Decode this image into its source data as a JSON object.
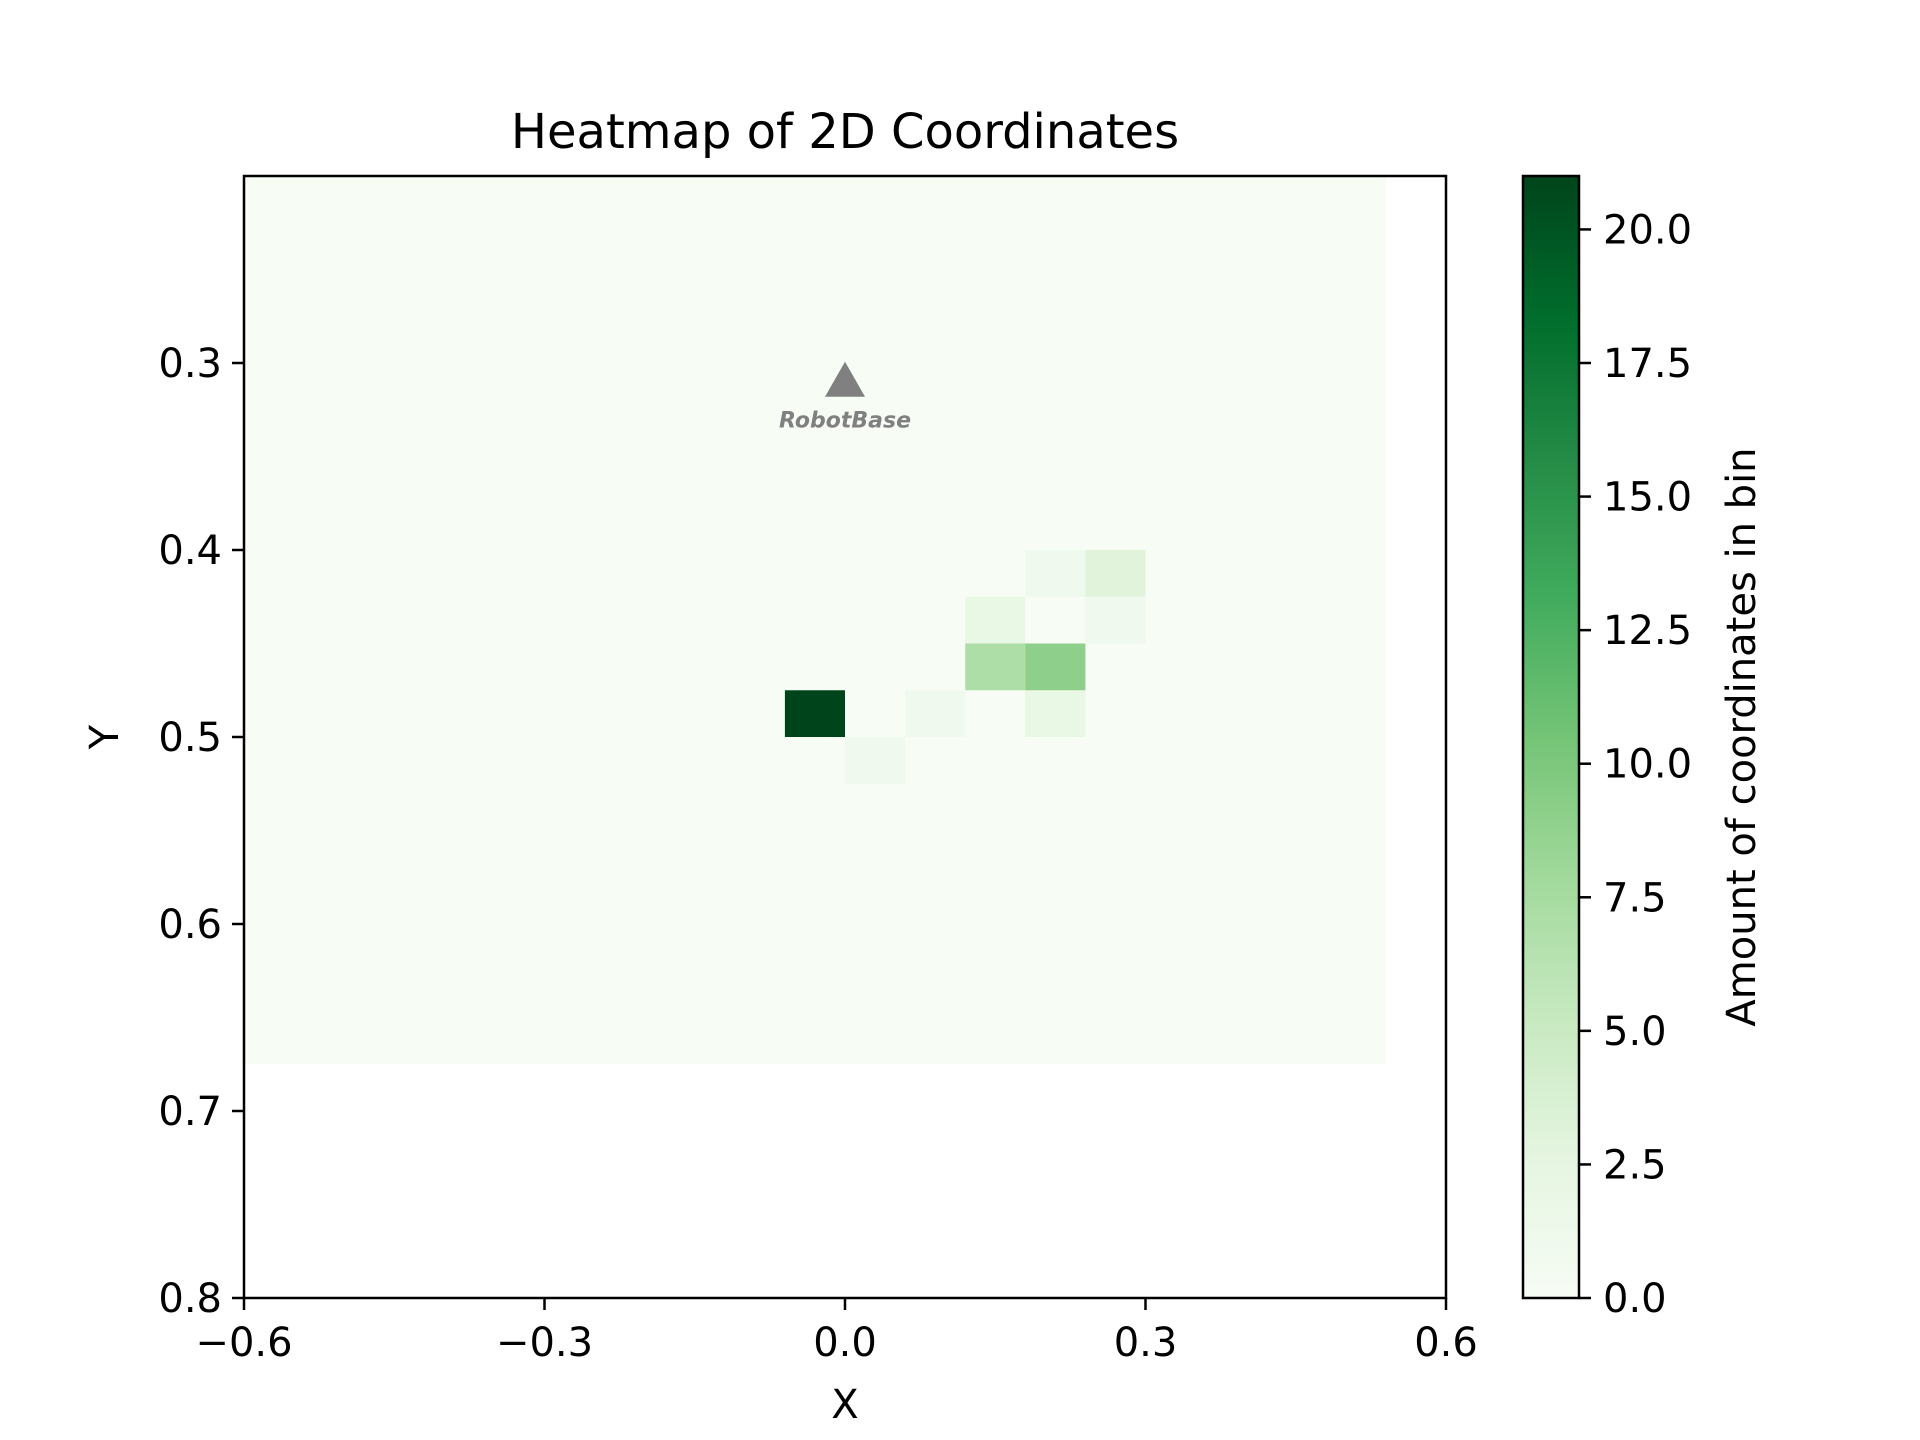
{
  "chart_data": {
    "type": "heatmap",
    "title": "Heatmap of 2D Coordinates",
    "xlabel": "X",
    "ylabel": "Y",
    "xlim": [
      -0.6,
      0.6
    ],
    "ylim": [
      0.8,
      0.2
    ],
    "y_inverted": true,
    "xticks": [
      -0.6,
      -0.3,
      0.0,
      0.3,
      0.6
    ],
    "xtick_labels": [
      "−0.6",
      "−0.3",
      "0.0",
      "0.3",
      "0.6"
    ],
    "yticks": [
      0.3,
      0.4,
      0.5,
      0.6,
      0.7,
      0.8
    ],
    "ytick_labels": [
      "0.3",
      "0.4",
      "0.5",
      "0.6",
      "0.7",
      "0.8"
    ],
    "colormap": "Greens",
    "colorbar": {
      "label": "Amount of coordinates in bin",
      "min": 0,
      "max": 21,
      "ticks": [
        0,
        2.5,
        5,
        7.5,
        10,
        12.5,
        15,
        17.5,
        20
      ],
      "tick_labels": [
        "0.0",
        "2.5",
        "5.0",
        "7.5",
        "10.0",
        "12.5",
        "15.0",
        "17.5",
        "20.0"
      ]
    },
    "grid": false,
    "background_region": {
      "x0": -0.6,
      "x1": 0.54,
      "y0": 0.2,
      "y1": 0.675,
      "value": 0
    },
    "cells": [
      {
        "x0": -0.06,
        "x1": 0.0,
        "y0": 0.475,
        "y1": 0.5,
        "value": 21
      },
      {
        "x0": 0.0,
        "x1": 0.06,
        "y0": 0.5,
        "y1": 0.525,
        "value": 1
      },
      {
        "x0": 0.06,
        "x1": 0.12,
        "y0": 0.475,
        "y1": 0.5,
        "value": 1
      },
      {
        "x0": 0.18,
        "x1": 0.24,
        "y0": 0.475,
        "y1": 0.5,
        "value": 2
      },
      {
        "x0": 0.12,
        "x1": 0.18,
        "y0": 0.45,
        "y1": 0.475,
        "value": 7
      },
      {
        "x0": 0.18,
        "x1": 0.24,
        "y0": 0.45,
        "y1": 0.475,
        "value": 9
      },
      {
        "x0": 0.12,
        "x1": 0.18,
        "y0": 0.425,
        "y1": 0.45,
        "value": 2
      },
      {
        "x0": 0.24,
        "x1": 0.3,
        "y0": 0.425,
        "y1": 0.45,
        "value": 1
      },
      {
        "x0": 0.18,
        "x1": 0.24,
        "y0": 0.4,
        "y1": 0.425,
        "value": 1
      },
      {
        "x0": 0.24,
        "x1": 0.3,
        "y0": 0.4,
        "y1": 0.425,
        "value": 3
      }
    ],
    "annotations": [
      {
        "label": "RobotBase",
        "marker": "triangle-up",
        "x": 0.0,
        "y": 0.31,
        "color": "#808080"
      }
    ]
  }
}
